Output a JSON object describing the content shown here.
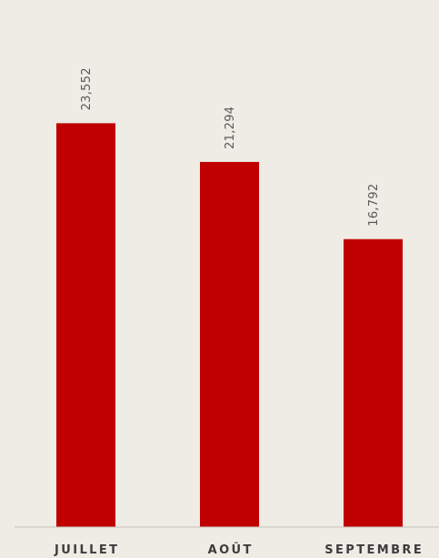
{
  "chart_data": {
    "type": "bar",
    "categories": [
      "JUILLET",
      "AOÛT",
      "SEPTEMBRE"
    ],
    "values": [
      23552,
      21294,
      16792
    ],
    "value_labels": [
      "23,552",
      "21,294",
      "16,792"
    ],
    "ylim": [
      0,
      30740
    ],
    "grid": false,
    "legend": "none",
    "colors": {
      "bar": "#c00000",
      "background": "#efebe5",
      "baseline": "#c4c0ba",
      "value_text": "#5a5a5a",
      "category_text": "#3c3c3c"
    }
  }
}
